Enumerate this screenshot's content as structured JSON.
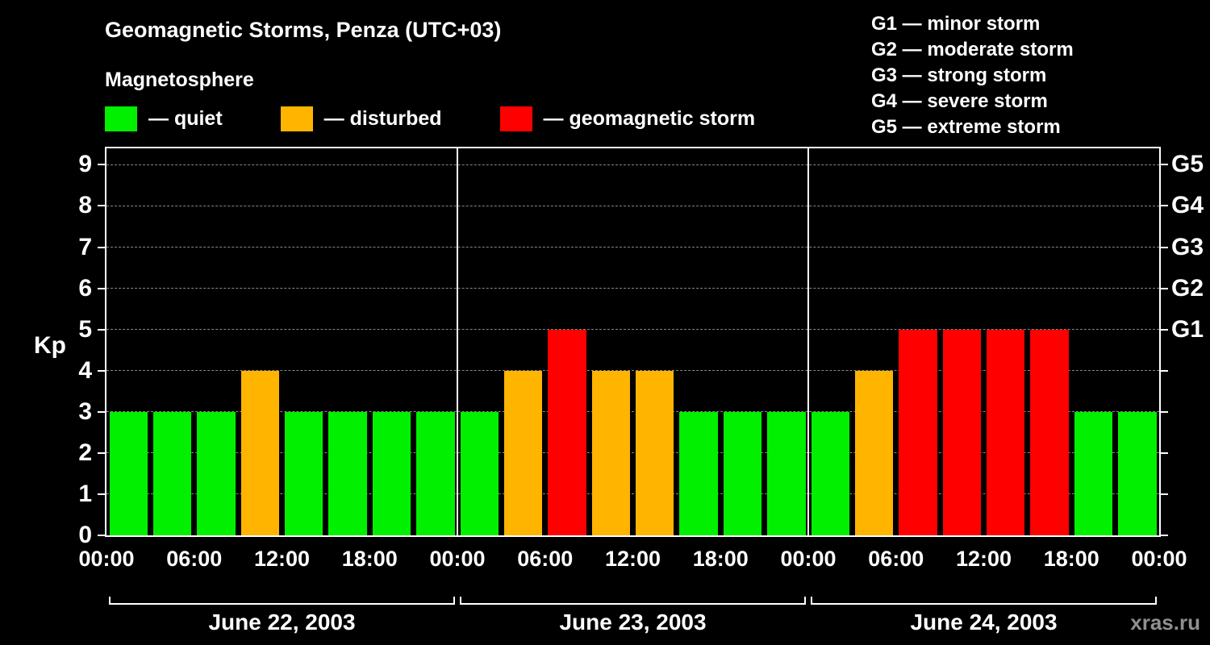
{
  "header": {
    "title": "Geomagnetic Storms, Penza (UTC+03)",
    "subtitle": "Magnetosphere"
  },
  "legend": {
    "items": [
      {
        "key": "quiet",
        "label": "— quiet"
      },
      {
        "key": "disturbed",
        "label": "— disturbed"
      },
      {
        "key": "storm",
        "label": "— geomagnetic storm"
      }
    ]
  },
  "storm_scale": {
    "items": [
      "G1 — minor storm",
      "G2 — moderate storm",
      "G3 — strong storm",
      "G4 — severe storm",
      "G5 — extreme storm"
    ]
  },
  "colors": {
    "quiet": "#00f000",
    "disturbed": "#ffb400",
    "storm": "#ff0000",
    "background": "#000000",
    "text": "#ffffff",
    "grid": "#878787",
    "watermark": "#909090"
  },
  "watermark": "xras.ru",
  "chart_data": {
    "type": "bar",
    "ylabel": "Kp",
    "ylim": [
      0,
      9.4
    ],
    "yticks": [
      0,
      1,
      2,
      3,
      4,
      5,
      6,
      7,
      8,
      9
    ],
    "right_axis_labels": [
      {
        "value": 5,
        "label": "G1"
      },
      {
        "value": 6,
        "label": "G2"
      },
      {
        "value": 7,
        "label": "G3"
      },
      {
        "value": 8,
        "label": "G4"
      },
      {
        "value": 9,
        "label": "G5"
      }
    ],
    "x_tick_labels": [
      "00:00",
      "06:00",
      "12:00",
      "18:00",
      "00:00",
      "06:00",
      "12:00",
      "18:00",
      "00:00",
      "06:00",
      "12:00",
      "18:00",
      "00:00"
    ],
    "bar_interval_hours": 3,
    "days": [
      {
        "label": "June 22, 2003",
        "values": [
          3,
          3,
          3,
          4,
          3,
          3,
          3,
          3
        ],
        "conditions": [
          "quiet",
          "quiet",
          "quiet",
          "disturbed",
          "quiet",
          "quiet",
          "quiet",
          "quiet"
        ]
      },
      {
        "label": "June 23, 2003",
        "values": [
          3,
          4,
          5,
          4,
          4,
          3,
          3,
          3
        ],
        "conditions": [
          "quiet",
          "disturbed",
          "storm",
          "disturbed",
          "disturbed",
          "quiet",
          "quiet",
          "quiet"
        ]
      },
      {
        "label": "June 24, 2003",
        "values": [
          3,
          4,
          5,
          5,
          5,
          5,
          3,
          3
        ],
        "conditions": [
          "quiet",
          "disturbed",
          "storm",
          "storm",
          "storm",
          "storm",
          "quiet",
          "quiet"
        ]
      }
    ],
    "grid": "horizontal-dashed",
    "legend_position": "top"
  }
}
